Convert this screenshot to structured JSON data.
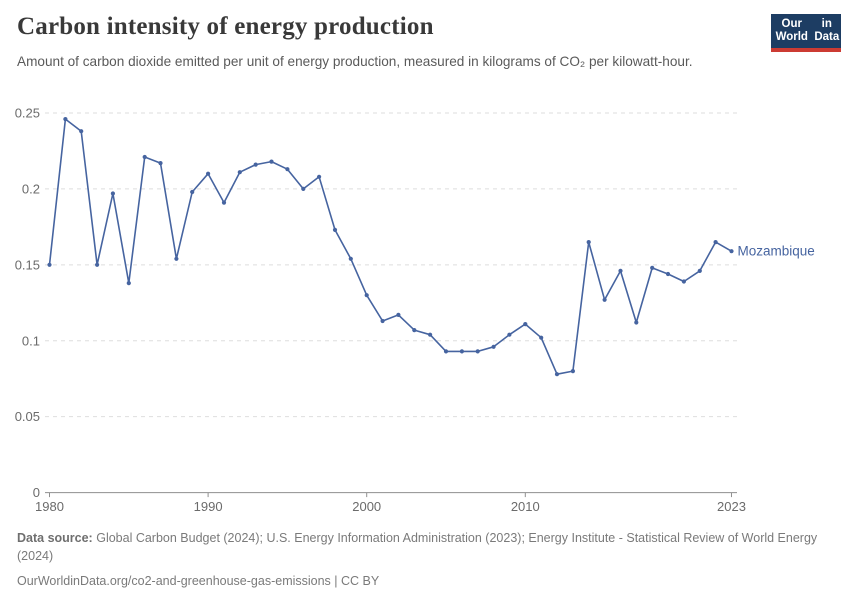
{
  "header": {
    "title": "Carbon intensity of energy production",
    "subtitle": "Amount of carbon dioxide emitted per unit of energy production, measured in kilograms of CO₂ per kilowatt-hour.",
    "logo": {
      "line1": "Our World",
      "line2": "in Data"
    }
  },
  "chart_data": {
    "type": "line",
    "title": "Carbon intensity of energy production",
    "subtitle": "Amount of carbon dioxide emitted per unit of energy production, measured in kilograms of CO₂ per kilowatt-hour.",
    "entity": "Mozambique",
    "unit": "kilograms of CO₂ per kilowatt-hour",
    "grid": true,
    "legend_position": "end-of-line",
    "ylim": [
      0,
      0.25
    ],
    "xlim": [
      1980,
      2023
    ],
    "y_ticks": [
      0,
      0.05,
      0.1,
      0.15,
      0.2,
      0.25
    ],
    "y_tick_labels": [
      "0",
      "0.05",
      "0.1",
      "0.15",
      "0.2",
      "0.25"
    ],
    "x_tick_years": [
      1980,
      1990,
      2000,
      2010,
      2023
    ],
    "x_tick_labels": [
      "1980",
      "1990",
      "2000",
      "2010",
      "2023"
    ],
    "x": [
      1980,
      1981,
      1982,
      1983,
      1984,
      1985,
      1986,
      1987,
      1988,
      1989,
      1990,
      1991,
      1992,
      1993,
      1994,
      1995,
      1996,
      1997,
      1998,
      1999,
      2000,
      2001,
      2002,
      2003,
      2004,
      2005,
      2006,
      2007,
      2008,
      2009,
      2010,
      2011,
      2012,
      2013,
      2014,
      2015,
      2016,
      2017,
      2018,
      2019,
      2020,
      2021,
      2022,
      2023
    ],
    "series": [
      {
        "name": "Mozambique",
        "color": "#4664a0",
        "values": [
          0.15,
          0.246,
          0.238,
          0.15,
          0.197,
          0.138,
          0.221,
          0.217,
          0.154,
          0.198,
          0.21,
          0.191,
          0.211,
          0.216,
          0.218,
          0.213,
          0.2,
          0.208,
          0.173,
          0.154,
          0.13,
          0.113,
          0.117,
          0.107,
          0.104,
          0.093,
          0.093,
          0.093,
          0.096,
          0.104,
          0.111,
          0.102,
          0.078,
          0.08,
          0.165,
          0.127,
          0.146,
          0.112,
          0.148,
          0.144,
          0.139,
          0.146,
          0.165,
          0.159
        ]
      }
    ]
  },
  "footer": {
    "source_label": "Data source:",
    "source_text": "Global Carbon Budget (2024); U.S. Energy Information Administration (2023); Energy Institute - Statistical Review of World Energy (2024)",
    "link_text": "OurWorldinData.org/co2-and-greenhouse-gas-emissions | CC BY"
  },
  "colors": {
    "line": "#4664a0",
    "entity_label": "#4664a0",
    "grid": "#dedede",
    "axis": "#8f8f8f",
    "tick_text": "#6b6b6b",
    "logo_bg": "#1d3d63",
    "logo_accent": "#cc3b33"
  }
}
